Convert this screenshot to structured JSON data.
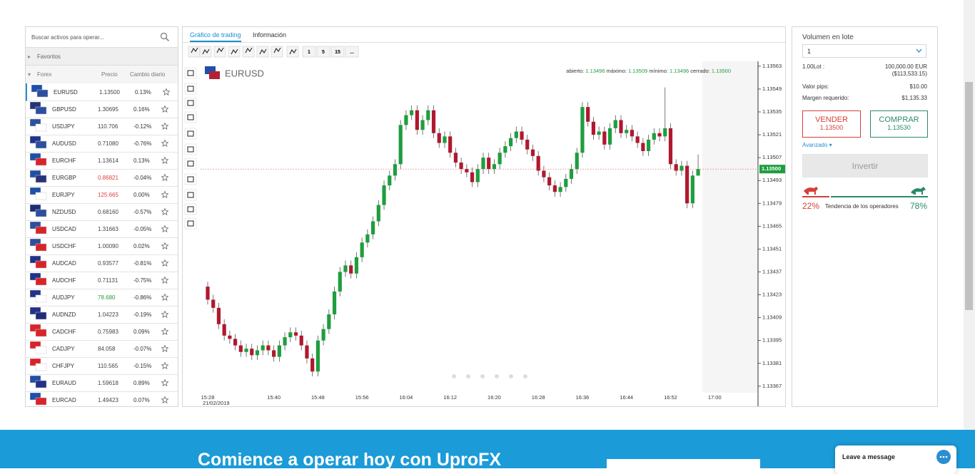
{
  "search_placeholder": "Buscar activos para operar...",
  "favorites": "Favoritos",
  "list_header": {
    "group": "Forex",
    "price": "Precio",
    "change": "Cambio diario"
  },
  "assets": [
    {
      "symbol": "EURUSD",
      "price": "1.13500",
      "change": "0.13%"
    },
    {
      "symbol": "GBPUSD",
      "price": "1.30695",
      "change": "0.16%"
    },
    {
      "symbol": "USDJPY",
      "price": "110.706",
      "change": "-0.12%"
    },
    {
      "symbol": "AUDUSD",
      "price": "0.71080",
      "change": "-0.76%"
    },
    {
      "symbol": "EURCHF",
      "price": "1.13614",
      "change": "0.13%"
    },
    {
      "symbol": "EURGBP",
      "price": "0.86821",
      "change": "-0.04%",
      "price_color": "#e0413c"
    },
    {
      "symbol": "EURJPY",
      "price": "125.665",
      "change": "0.00%",
      "price_color": "#e0413c"
    },
    {
      "symbol": "NZDUSD",
      "price": "0.68160",
      "change": "-0.57%"
    },
    {
      "symbol": "USDCAD",
      "price": "1.31663",
      "change": "-0.05%"
    },
    {
      "symbol": "USDCHF",
      "price": "1.00090",
      "change": "0.02%"
    },
    {
      "symbol": "AUDCAD",
      "price": "0.93577",
      "change": "-0.81%"
    },
    {
      "symbol": "AUDCHF",
      "price": "0.71131",
      "change": "-0.75%"
    },
    {
      "symbol": "AUDJPY",
      "price": "78.680",
      "change": "-0.86%",
      "price_color": "#1e9e3e"
    },
    {
      "symbol": "AUDNZD",
      "price": "1.04223",
      "change": "-0.19%"
    },
    {
      "symbol": "CADCHF",
      "price": "0.75983",
      "change": "0.09%"
    },
    {
      "symbol": "CADJPY",
      "price": "84.058",
      "change": "-0.07%"
    },
    {
      "symbol": "CHFJPY",
      "price": "110.565",
      "change": "-0.15%"
    },
    {
      "symbol": "EURAUD",
      "price": "1.59618",
      "change": "0.89%"
    },
    {
      "symbol": "EURCAD",
      "price": "1.49423",
      "change": "0.07%"
    }
  ],
  "tabs": [
    "Gráfico de trading",
    "Información"
  ],
  "timeframes": [
    "1",
    "5",
    "15",
    "..."
  ],
  "chart_data": {
    "type": "candlestick",
    "title": "EURUSD",
    "header": [
      {
        "label": "abierto:",
        "value": "1.13496"
      },
      {
        "label": "máximo:",
        "value": "1.13509"
      },
      {
        "label": "mínimo:",
        "value": "1.13496"
      },
      {
        "label": "cerrado:",
        "value": "1.13500"
      }
    ],
    "date_label": "21/02/2019",
    "last_price_label": "1.13500",
    "up_color": "#1e9e3e",
    "down_color": "#b0182e",
    "categories": [
      "15:28",
      null,
      null,
      null,
      null,
      null,
      null,
      null,
      null,
      null,
      null,
      null,
      "15:40",
      null,
      null,
      null,
      null,
      null,
      null,
      null,
      "15:48",
      null,
      null,
      null,
      null,
      null,
      null,
      null,
      "15:56",
      null,
      null,
      null,
      null,
      null,
      null,
      null,
      "16:04",
      null,
      null,
      null,
      null,
      null,
      null,
      null,
      "16:12",
      null,
      null,
      null,
      null,
      null,
      null,
      null,
      "16:20",
      null,
      null,
      null,
      null,
      null,
      null,
      null,
      "16:28",
      null,
      null,
      null,
      null,
      null,
      null,
      null,
      "16:36",
      null,
      null,
      null,
      null,
      null,
      null,
      null,
      "16:44",
      null,
      null,
      null,
      null,
      null,
      null,
      null,
      "16:52",
      null,
      null,
      null,
      null,
      null,
      null,
      null,
      "17:00"
    ],
    "ohlc": [
      [
        1.13428,
        1.13431,
        1.13417,
        1.1342
      ],
      [
        1.1342,
        1.13423,
        1.13412,
        1.13415
      ],
      [
        1.13415,
        1.13418,
        1.13402,
        1.13405
      ],
      [
        1.13405,
        1.13408,
        1.13395,
        1.13398
      ],
      [
        1.13398,
        1.13401,
        1.13393,
        1.13396
      ],
      [
        1.13396,
        1.13399,
        1.13389,
        1.13392
      ],
      [
        1.13392,
        1.13395,
        1.13385,
        1.13388
      ],
      [
        1.13388,
        1.13393,
        1.13385,
        1.1339
      ],
      [
        1.1339,
        1.13393,
        1.13383,
        1.13386
      ],
      [
        1.13386,
        1.13392,
        1.13383,
        1.13389
      ],
      [
        1.13389,
        1.13395,
        1.13386,
        1.13392
      ],
      [
        1.13392,
        1.13395,
        1.13386,
        1.13389
      ],
      [
        1.13389,
        1.13392,
        1.13382,
        1.13385
      ],
      [
        1.13385,
        1.13395,
        1.13382,
        1.13392
      ],
      [
        1.13392,
        1.134,
        1.13389,
        1.13397
      ],
      [
        1.13397,
        1.13403,
        1.13394,
        1.134
      ],
      [
        1.134,
        1.13403,
        1.13395,
        1.13398
      ],
      [
        1.13398,
        1.13401,
        1.13389,
        1.13392
      ],
      [
        1.13392,
        1.13395,
        1.13381,
        1.13384
      ],
      [
        1.13384,
        1.13387,
        1.13373,
        1.13376
      ],
      [
        1.13376,
        1.13398,
        1.13373,
        1.13395
      ],
      [
        1.13395,
        1.13405,
        1.13392,
        1.13402
      ],
      [
        1.13402,
        1.13414,
        1.13399,
        1.13411
      ],
      [
        1.13411,
        1.13428,
        1.13408,
        1.13425
      ],
      [
        1.13425,
        1.1344,
        1.13422,
        1.13437
      ],
      [
        1.13437,
        1.13444,
        1.13434,
        1.13441
      ],
      [
        1.13441,
        1.13444,
        1.13433,
        1.13436
      ],
      [
        1.13436,
        1.13449,
        1.13433,
        1.13446
      ],
      [
        1.13446,
        1.13458,
        1.13443,
        1.13455
      ],
      [
        1.13455,
        1.13463,
        1.13452,
        1.1346
      ],
      [
        1.1346,
        1.13471,
        1.13457,
        1.13468
      ],
      [
        1.13468,
        1.13481,
        1.13465,
        1.13478
      ],
      [
        1.13478,
        1.13493,
        1.13475,
        1.1349
      ],
      [
        1.1349,
        1.13499,
        1.13487,
        1.13496
      ],
      [
        1.13496,
        1.13506,
        1.13493,
        1.13503
      ],
      [
        1.13503,
        1.1353,
        1.135,
        1.13527
      ],
      [
        1.13527,
        1.13536,
        1.13524,
        1.13533
      ],
      [
        1.13533,
        1.13539,
        1.1353,
        1.13536
      ],
      [
        1.13536,
        1.13539,
        1.13521,
        1.13524
      ],
      [
        1.13524,
        1.13533,
        1.13521,
        1.1353
      ],
      [
        1.1353,
        1.13539,
        1.13527,
        1.13536
      ],
      [
        1.13536,
        1.13539,
        1.13519,
        1.13522
      ],
      [
        1.13522,
        1.13525,
        1.13513,
        1.13516
      ],
      [
        1.13516,
        1.13523,
        1.13513,
        1.1352
      ],
      [
        1.1352,
        1.13523,
        1.13507,
        1.1351
      ],
      [
        1.1351,
        1.13513,
        1.13501,
        1.13504
      ],
      [
        1.13504,
        1.13507,
        1.13497,
        1.135
      ],
      [
        1.135,
        1.13503,
        1.13495,
        1.13498
      ],
      [
        1.13498,
        1.13501,
        1.13489,
        1.13492
      ],
      [
        1.13492,
        1.13503,
        1.13489,
        1.135
      ],
      [
        1.135,
        1.1351,
        1.13497,
        1.13507
      ],
      [
        1.13507,
        1.1351,
        1.13497,
        1.135
      ],
      [
        1.135,
        1.13506,
        1.13497,
        1.13503
      ],
      [
        1.13503,
        1.13513,
        1.135,
        1.1351
      ],
      [
        1.1351,
        1.13517,
        1.13507,
        1.13514
      ],
      [
        1.13514,
        1.13522,
        1.13511,
        1.13519
      ],
      [
        1.13519,
        1.13526,
        1.13516,
        1.13523
      ],
      [
        1.13523,
        1.13526,
        1.13515,
        1.13518
      ],
      [
        1.13518,
        1.13521,
        1.13509,
        1.13512
      ],
      [
        1.13512,
        1.13515,
        1.13505,
        1.13508
      ],
      [
        1.13508,
        1.13511,
        1.13496,
        1.13499
      ],
      [
        1.13499,
        1.13502,
        1.13492,
        1.13495
      ],
      [
        1.13495,
        1.13498,
        1.13487,
        1.1349
      ],
      [
        1.1349,
        1.13493,
        1.13483,
        1.13486
      ],
      [
        1.13486,
        1.13492,
        1.13483,
        1.13489
      ],
      [
        1.13489,
        1.13497,
        1.13486,
        1.13494
      ],
      [
        1.13494,
        1.13503,
        1.13491,
        1.135
      ],
      [
        1.135,
        1.13513,
        1.13497,
        1.1351
      ],
      [
        1.1351,
        1.13541,
        1.13507,
        1.13538
      ],
      [
        1.13538,
        1.13541,
        1.13526,
        1.13529
      ],
      [
        1.13529,
        1.13532,
        1.13518,
        1.13521
      ],
      [
        1.13521,
        1.13526,
        1.13518,
        1.13523
      ],
      [
        1.13523,
        1.13526,
        1.13512,
        1.13515
      ],
      [
        1.13515,
        1.13528,
        1.13512,
        1.13525
      ],
      [
        1.13525,
        1.13533,
        1.13522,
        1.1353
      ],
      [
        1.1353,
        1.13533,
        1.13519,
        1.13522
      ],
      [
        1.13522,
        1.13527,
        1.13519,
        1.13524
      ],
      [
        1.13524,
        1.13527,
        1.13517,
        1.1352
      ],
      [
        1.1352,
        1.13523,
        1.13513,
        1.13516
      ],
      [
        1.13516,
        1.13519,
        1.13508,
        1.13511
      ],
      [
        1.13511,
        1.13521,
        1.13508,
        1.13518
      ],
      [
        1.13518,
        1.13525,
        1.13515,
        1.13522
      ],
      [
        1.13522,
        1.13525,
        1.13517,
        1.1352
      ],
      [
        1.1352,
        1.1355,
        1.13517,
        1.13525
      ],
      [
        1.13525,
        1.13528,
        1.135,
        1.13503
      ],
      [
        1.13503,
        1.13506,
        1.13496,
        1.13499
      ],
      [
        1.13499,
        1.13505,
        1.13496,
        1.13502
      ],
      [
        1.13502,
        1.13505,
        1.13476,
        1.13479
      ],
      [
        1.13479,
        1.13499,
        1.13476,
        1.13496
      ],
      [
        1.13496,
        1.13509,
        1.13496,
        1.135
      ],
      null,
      null,
      null
    ],
    "ylim": [
      1.13363,
      1.13566
    ],
    "yticks": [
      1.13563,
      1.13549,
      1.13535,
      1.13521,
      1.13507,
      1.13493,
      1.13479,
      1.13465,
      1.13451,
      1.13437,
      1.13423,
      1.13409,
      1.13395,
      1.13381,
      1.13367
    ]
  },
  "trade_panel": {
    "volume_label": "Volumen en lote",
    "volume_value": "1",
    "lot_label": "1.00Lot :",
    "lot_value": "100,000.00 EUR",
    "lot_usd": "($113,533.15)",
    "pip_label": "Valor pips:",
    "pip_value": "$10.00",
    "margin_label": "Margen requerido:",
    "margin_value": "$1,135.33",
    "sell_label": "VENDER",
    "sell_price": "1.13500",
    "buy_label": "COMPRAR",
    "buy_price": "1.13530",
    "advanced": "Avanzado",
    "invest": "Invertir",
    "bear_pct": "22%",
    "sentiment_label": "Tendencia de los operadores",
    "bull_pct": "78%"
  },
  "banner": "Comience a operar hoy con UproFX",
  "chat": "Leave a message"
}
